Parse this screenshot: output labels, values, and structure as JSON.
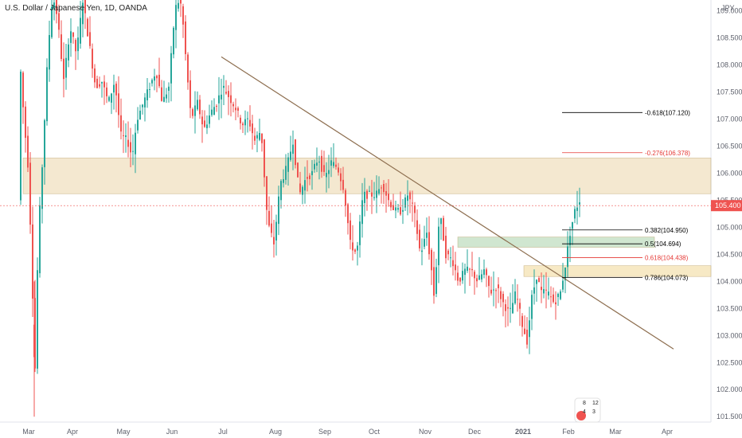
{
  "title": "U.S. Dollar / Japanese Yen, 1D, OANDA",
  "chart_data": {
    "type": "candlestick",
    "currency_label": "JPY",
    "y_ticks": [
      "109.000",
      "108.500",
      "108.000",
      "107.500",
      "107.000",
      "106.500",
      "106.000",
      "105.500",
      "105.000",
      "104.500",
      "104.000",
      "103.500",
      "103.000",
      "102.500",
      "102.000",
      "101.500"
    ],
    "x_ticks": [
      "Mar",
      "Apr",
      "May",
      "Jun",
      "Jul",
      "Aug",
      "Sep",
      "Oct",
      "Nov",
      "Dec",
      "2021",
      "Feb",
      "Mar",
      "Apr"
    ],
    "ylim": [
      101.4,
      109.2
    ],
    "last_price": "105.400",
    "colors": {
      "up": "#26a69a",
      "down": "#ef5350",
      "bg": "#ffffff"
    },
    "trendline": {
      "from": [
        "Jul",
        108.15
      ],
      "to": [
        "Apr",
        102.75
      ],
      "color": "#8d6e4f"
    },
    "zones": [
      {
        "name": "major-resistance-zone",
        "from": [
          "Mar",
          106.28
        ],
        "to": [
          "Apr+",
          105.62
        ],
        "color": "rgba(230,205,150,0.45)"
      },
      {
        "name": "fib-green-zone",
        "from": [
          "Dec-",
          104.82
        ],
        "to": [
          "Feb+",
          104.63
        ],
        "color": "rgba(150,200,150,0.45)"
      },
      {
        "name": "fib-yellow-zone",
        "from": [
          "Jan-",
          104.29
        ],
        "to": [
          "Apr+",
          104.09
        ],
        "color": "rgba(240,215,150,0.55)"
      }
    ],
    "fib_levels": [
      {
        "label": "-0.618(107.120)",
        "price": 107.12,
        "color": "#000000"
      },
      {
        "label": "-0.276(106.378)",
        "price": 106.378,
        "color": "#e53935"
      },
      {
        "label": "0.382(104.950)",
        "price": 104.95,
        "color": "#000000"
      },
      {
        "label": "0.5(104.694)",
        "price": 104.694,
        "color": "#000000"
      },
      {
        "label": "0.618(104.438)",
        "price": 104.438,
        "color": "#e53935"
      },
      {
        "label": "0.786(104.073)",
        "price": 104.073,
        "color": "#000000"
      }
    ],
    "logo_counts": {
      "top_left": "8",
      "top_right": "12",
      "bottom_left": "4",
      "bottom_right": "3"
    }
  }
}
